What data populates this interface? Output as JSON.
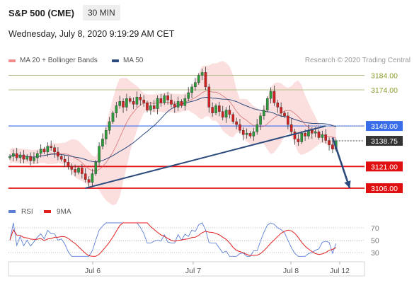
{
  "header": {
    "symbol": "S&P 500 (CME)",
    "timeframe": "30 MIN",
    "datetime": "Wednesday, July 8, 2020 9:19:29 AM CET"
  },
  "legend": {
    "bollinger_label": "MA 20 + Bollinger Bands",
    "ma50_label": "MA 50",
    "credit": "Research © 2020 Trading Central"
  },
  "colors": {
    "bollinger": "#f08c8c",
    "ma50": "#2c4a7c",
    "rsi": "#5b7fd6",
    "rsi_ma": "#e02020",
    "level_red": "#e01010",
    "level_blue": "#3a6ee8",
    "level_olive": "#b7c08a",
    "last_price": "#333333"
  },
  "chart_data": {
    "type": "candlestick",
    "x_ticks": [
      "Jul 6",
      "Jul 7",
      "Jul 8",
      "Jul 12"
    ],
    "price_levels": [
      {
        "label": "3184.00",
        "value": 3184,
        "kind": "olive"
      },
      {
        "label": "3174.00",
        "value": 3174,
        "kind": "olive"
      },
      {
        "label": "3149.00",
        "value": 3149,
        "kind": "blue"
      },
      {
        "label": "3138.75",
        "value": 3138.75,
        "kind": "last"
      },
      {
        "label": "3121.00",
        "value": 3121,
        "kind": "red"
      },
      {
        "label": "3106.00",
        "value": 3106,
        "kind": "red"
      }
    ],
    "close_series": [
      3128,
      3130,
      3127,
      3129,
      3126,
      3128,
      3125,
      3127,
      3130,
      3133,
      3131,
      3135,
      3134,
      3131,
      3128,
      3126,
      3124,
      3121,
      3119,
      3117,
      3120,
      3116,
      3112,
      3110,
      3116,
      3124,
      3135,
      3140,
      3146,
      3152,
      3158,
      3163,
      3166,
      3162,
      3168,
      3166,
      3164,
      3169,
      3167,
      3165,
      3160,
      3163,
      3161,
      3168,
      3165,
      3170,
      3167,
      3164,
      3162,
      3166,
      3163,
      3168,
      3172,
      3176,
      3179,
      3184,
      3186,
      3176,
      3162,
      3158,
      3163,
      3159,
      3155,
      3160,
      3157,
      3152,
      3150,
      3146,
      3143,
      3144,
      3142,
      3145,
      3150,
      3156,
      3160,
      3168,
      3173,
      3165,
      3162,
      3158,
      3156,
      3150,
      3145,
      3140,
      3138,
      3144,
      3142,
      3146,
      3144,
      3145,
      3141,
      3143,
      3139,
      3136,
      3133,
      3138.75
    ],
    "trendlines": [
      {
        "from": {
          "i": 22,
          "value": 3106
        },
        "to": {
          "i": 92,
          "value": 3149
        }
      },
      {
        "from": {
          "i": 94,
          "value": 3141
        },
        "to": {
          "i": 99,
          "value": 3106
        },
        "arrow": true
      }
    ],
    "rsi": {
      "labels": [
        "RSI",
        "9MA"
      ],
      "levels": [
        70,
        50,
        30
      ],
      "level_labels": [
        "70",
        "50",
        "30"
      ],
      "range": [
        20,
        80
      ]
    }
  }
}
